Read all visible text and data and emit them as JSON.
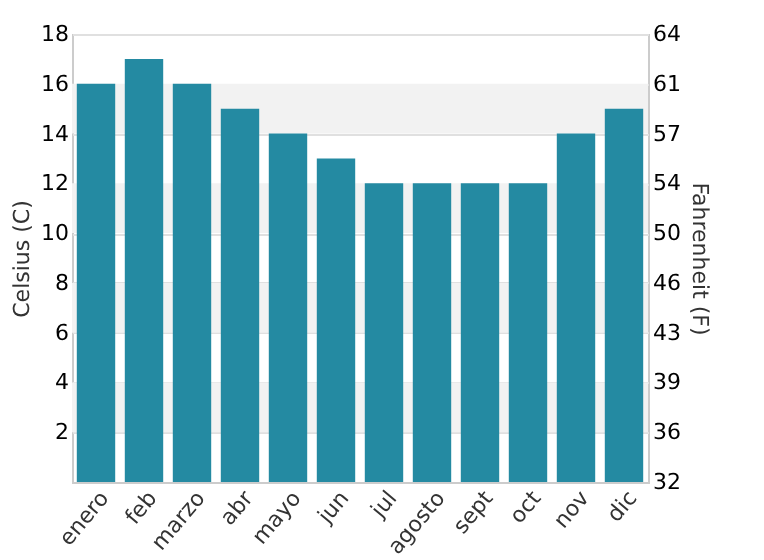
{
  "chart_data": {
    "type": "bar",
    "ylabel": "Celsius (C)",
    "y2label": "Fahrenheit (F)",
    "categories": [
      "enero",
      "feb",
      "marzo",
      "abr",
      "mayo",
      "jun",
      "jul",
      "agosto",
      "sept",
      "oct",
      "nov",
      "dic"
    ],
    "values": [
      16,
      17,
      16,
      15,
      14,
      13,
      12,
      12,
      12,
      12,
      14,
      15
    ],
    "color": "#248aa2",
    "ylim": [
      0,
      18
    ],
    "yticks": [
      2,
      4,
      6,
      8,
      10,
      12,
      14,
      16,
      18
    ],
    "y2lim": [
      32,
      64.4
    ],
    "y2ticks": [
      32,
      {
        "value": 35.6,
        "label": "36"
      },
      {
        "value": 39.2,
        "label": "39"
      },
      {
        "value": 42.8,
        "label": "43"
      },
      {
        "value": 46.4,
        "label": "46"
      },
      50,
      {
        "value": 53.6,
        "label": "54"
      },
      {
        "value": 57.2,
        "label": "57"
      },
      {
        "value": 60.8,
        "label": "61"
      },
      {
        "value": 64.4,
        "label": "64"
      }
    ],
    "bands": [
      {
        "axis": "y",
        "from": 2,
        "to": 4,
        "color": "#f2f2f2"
      },
      {
        "axis": "y",
        "from": 6,
        "to": 8,
        "color": "#f2f2f2"
      },
      {
        "axis": "y",
        "from": 10,
        "to": 12,
        "color": "#f2f2f2"
      },
      {
        "axis": "y",
        "from": 14,
        "to": 16,
        "color": "#f2f2f2"
      }
    ],
    "grid": "y"
  }
}
